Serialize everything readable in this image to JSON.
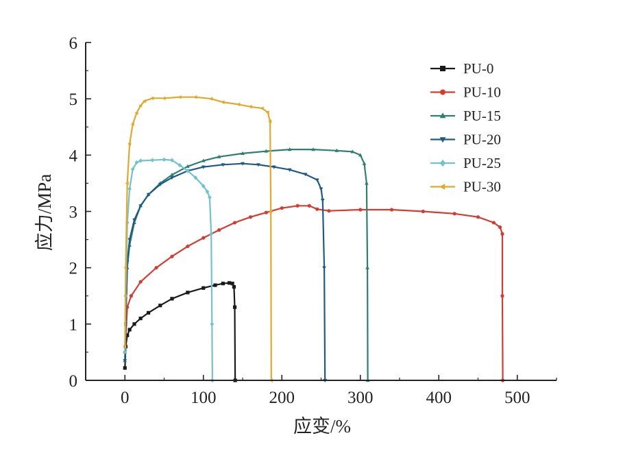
{
  "chart_data": {
    "type": "line",
    "title": "",
    "xlabel": "应变/%",
    "ylabel": "应力/MPa",
    "xlim": [
      -50,
      550
    ],
    "ylim": [
      0,
      6
    ],
    "xticks": [
      0,
      100,
      200,
      300,
      400,
      500
    ],
    "yticks": [
      0,
      1,
      2,
      3,
      4,
      5,
      6
    ],
    "grid": false,
    "legend_position": "top-right",
    "series": [
      {
        "name": "PU-0",
        "color": "#1a1a1a",
        "marker": "square",
        "points": [
          [
            0,
            0.22
          ],
          [
            1,
            0.6
          ],
          [
            3,
            0.8
          ],
          [
            6,
            0.9
          ],
          [
            12,
            1.0
          ],
          [
            20,
            1.1
          ],
          [
            30,
            1.2
          ],
          [
            45,
            1.33
          ],
          [
            60,
            1.45
          ],
          [
            80,
            1.56
          ],
          [
            100,
            1.64
          ],
          [
            115,
            1.69
          ],
          [
            125,
            1.72
          ],
          [
            133,
            1.73
          ],
          [
            137,
            1.72
          ],
          [
            139,
            1.66
          ],
          [
            140,
            1.3
          ],
          [
            140.5,
            0
          ]
        ]
      },
      {
        "name": "PU-10",
        "color": "#d63b30",
        "marker": "circle",
        "points": [
          [
            0,
            0.5
          ],
          [
            3,
            1.3
          ],
          [
            8,
            1.5
          ],
          [
            20,
            1.75
          ],
          [
            40,
            2.0
          ],
          [
            60,
            2.2
          ],
          [
            80,
            2.38
          ],
          [
            100,
            2.53
          ],
          [
            120,
            2.67
          ],
          [
            140,
            2.8
          ],
          [
            160,
            2.9
          ],
          [
            180,
            2.98
          ],
          [
            200,
            3.06
          ],
          [
            220,
            3.1
          ],
          [
            235,
            3.1
          ],
          [
            245,
            3.04
          ],
          [
            260,
            3.01
          ],
          [
            300,
            3.03
          ],
          [
            340,
            3.03
          ],
          [
            380,
            3.0
          ],
          [
            420,
            2.96
          ],
          [
            450,
            2.9
          ],
          [
            470,
            2.8
          ],
          [
            478,
            2.72
          ],
          [
            481,
            2.6
          ],
          [
            481,
            1.5
          ],
          [
            481.5,
            0
          ]
        ]
      },
      {
        "name": "PU-15",
        "color": "#2e7f6e",
        "marker": "triangle-up",
        "points": [
          [
            0,
            0.35
          ],
          [
            1,
            1.0
          ],
          [
            3,
            2.0
          ],
          [
            6,
            2.4
          ],
          [
            12,
            2.8
          ],
          [
            20,
            3.1
          ],
          [
            30,
            3.3
          ],
          [
            45,
            3.5
          ],
          [
            60,
            3.65
          ],
          [
            80,
            3.8
          ],
          [
            100,
            3.9
          ],
          [
            120,
            3.97
          ],
          [
            150,
            4.03
          ],
          [
            180,
            4.07
          ],
          [
            210,
            4.1
          ],
          [
            240,
            4.1
          ],
          [
            270,
            4.08
          ],
          [
            290,
            4.06
          ],
          [
            300,
            4.0
          ],
          [
            305,
            3.85
          ],
          [
            308,
            3.5
          ],
          [
            309,
            2.0
          ],
          [
            309.5,
            0
          ]
        ]
      },
      {
        "name": "PU-20",
        "color": "#1d5a85",
        "marker": "triangle-down",
        "points": [
          [
            0,
            0.35
          ],
          [
            1,
            1.0
          ],
          [
            3,
            2.1
          ],
          [
            6,
            2.5
          ],
          [
            12,
            2.85
          ],
          [
            20,
            3.1
          ],
          [
            30,
            3.3
          ],
          [
            45,
            3.48
          ],
          [
            60,
            3.6
          ],
          [
            80,
            3.72
          ],
          [
            100,
            3.79
          ],
          [
            125,
            3.83
          ],
          [
            150,
            3.85
          ],
          [
            170,
            3.83
          ],
          [
            190,
            3.79
          ],
          [
            210,
            3.74
          ],
          [
            230,
            3.66
          ],
          [
            245,
            3.56
          ],
          [
            250,
            3.4
          ],
          [
            252,
            3.2
          ],
          [
            254,
            2.0
          ],
          [
            255,
            0
          ]
        ]
      },
      {
        "name": "PU-25",
        "color": "#6ec3cf",
        "marker": "diamond",
        "points": [
          [
            0,
            0.5
          ],
          [
            1,
            1.5
          ],
          [
            3,
            2.8
          ],
          [
            6,
            3.4
          ],
          [
            10,
            3.75
          ],
          [
            15,
            3.87
          ],
          [
            20,
            3.9
          ],
          [
            35,
            3.91
          ],
          [
            50,
            3.92
          ],
          [
            60,
            3.91
          ],
          [
            70,
            3.82
          ],
          [
            80,
            3.72
          ],
          [
            90,
            3.6
          ],
          [
            100,
            3.45
          ],
          [
            105,
            3.35
          ],
          [
            108,
            3.25
          ],
          [
            110,
            2.6
          ],
          [
            111,
            1.0
          ],
          [
            111.5,
            0
          ]
        ]
      },
      {
        "name": "PU-30",
        "color": "#e3a829",
        "marker": "triangle-left",
        "points": [
          [
            0,
            0.6
          ],
          [
            1,
            2.0
          ],
          [
            3,
            3.5
          ],
          [
            6,
            4.2
          ],
          [
            10,
            4.55
          ],
          [
            15,
            4.75
          ],
          [
            20,
            4.88
          ],
          [
            25,
            4.96
          ],
          [
            35,
            5.01
          ],
          [
            50,
            5.01
          ],
          [
            70,
            5.03
          ],
          [
            90,
            5.03
          ],
          [
            110,
            5.0
          ],
          [
            125,
            4.94
          ],
          [
            145,
            4.9
          ],
          [
            160,
            4.86
          ],
          [
            175,
            4.83
          ],
          [
            182,
            4.76
          ],
          [
            185,
            4.6
          ],
          [
            186,
            3.0
          ],
          [
            186.5,
            0
          ]
        ]
      }
    ]
  }
}
